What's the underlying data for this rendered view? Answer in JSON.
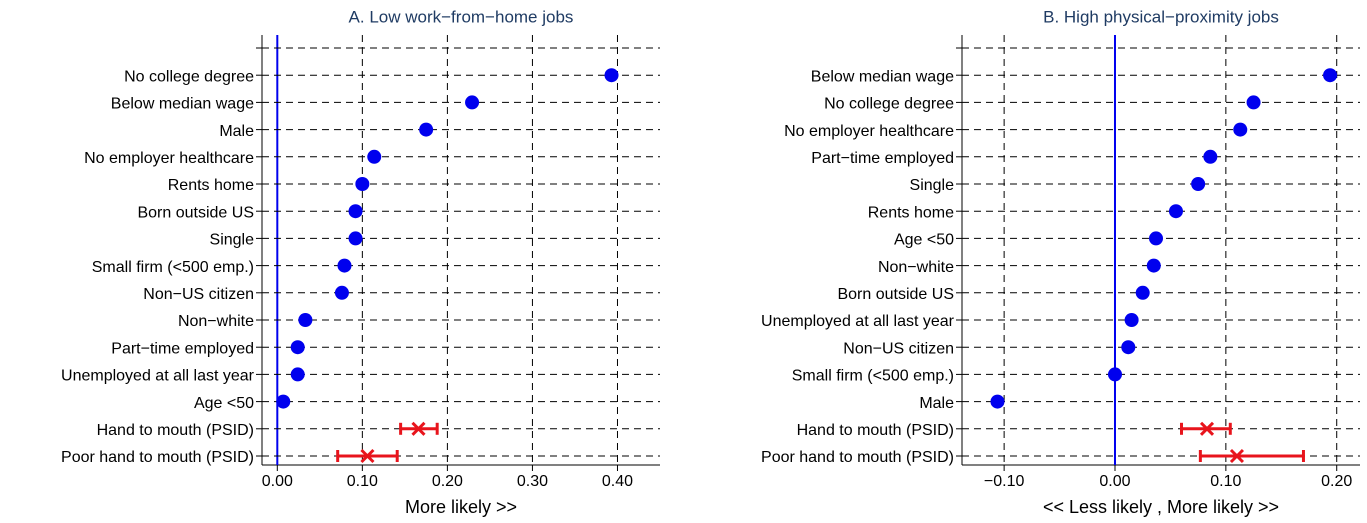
{
  "chart_data": [
    {
      "type": "dot",
      "title": "A. Low work−from−home jobs",
      "x_label": "More likely >>",
      "categories": [
        null,
        "No college degree",
        "Below median wage",
        "Male",
        "No employer healthcare",
        "Rents home",
        "Born outside US",
        "Single",
        "Small firm (<500 emp.)",
        "Non−US citizen",
        "Non−white",
        "Part−time employed",
        "Unemployed at all last year",
        "Age <50",
        "Hand to mouth (PSID)",
        "Poor hand to mouth (PSID)"
      ],
      "values": [
        null,
        0.393,
        0.229,
        0.175,
        0.114,
        0.1,
        0.092,
        0.092,
        0.079,
        0.076,
        0.033,
        0.024,
        0.024,
        0.007,
        0.166,
        0.106
      ],
      "lower": [
        null,
        null,
        null,
        null,
        null,
        null,
        null,
        null,
        null,
        null,
        null,
        null,
        null,
        null,
        0.145,
        0.071
      ],
      "upper": [
        null,
        null,
        null,
        null,
        null,
        null,
        null,
        null,
        null,
        null,
        null,
        null,
        null,
        null,
        0.188,
        0.141
      ],
      "color": "#0000ee",
      "ci_color": "#e8141c",
      "xlim": [
        -0.018,
        0.45
      ],
      "xticks": [
        {
          "value": 0,
          "label": "0.00"
        },
        {
          "value": 0.1,
          "label": "0.10"
        },
        {
          "value": 0.2,
          "label": "0.20"
        },
        {
          "value": 0.3,
          "label": "0.30"
        },
        {
          "value": 0.4,
          "label": "0.40"
        }
      ],
      "grid": true
    },
    {
      "type": "dot",
      "title": "B. High physical−proximity jobs",
      "x_label": "<< Less likely , More likely >>",
      "categories": [
        null,
        "Below median wage",
        "No college degree",
        "No employer healthcare",
        "Part−time employed",
        "Single",
        "Rents home",
        "Age <50",
        "Non−white",
        "Born outside US",
        "Unemployed at all last year",
        "Non−US citizen",
        "Small firm (<500 emp.)",
        "Male",
        "Hand to mouth (PSID)",
        "Poor hand to mouth (PSID)"
      ],
      "values": [
        null,
        0.194,
        0.125,
        0.113,
        0.086,
        0.075,
        0.055,
        0.037,
        0.035,
        0.025,
        0.015,
        0.012,
        0.0,
        -0.106,
        0.083,
        0.11
      ],
      "lower": [
        null,
        null,
        null,
        null,
        null,
        null,
        null,
        null,
        null,
        null,
        null,
        null,
        null,
        null,
        0.06,
        0.077
      ],
      "upper": [
        null,
        null,
        null,
        null,
        null,
        null,
        null,
        null,
        null,
        null,
        null,
        null,
        null,
        null,
        0.104,
        0.17
      ],
      "color": "#0000ee",
      "ci_color": "#e8141c",
      "xlim": [
        -0.138,
        0.221
      ],
      "xticks": [
        {
          "value": -0.1,
          "label": "−0.10"
        },
        {
          "value": 0,
          "label": "0.00"
        },
        {
          "value": 0.1,
          "label": "0.10"
        },
        {
          "value": 0.2,
          "label": "0.20"
        }
      ],
      "grid": true
    }
  ]
}
